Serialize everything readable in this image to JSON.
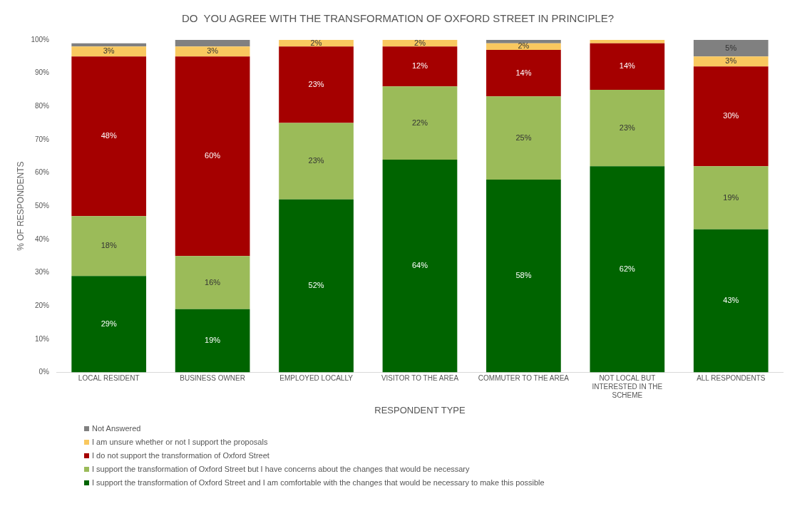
{
  "chart_data": {
    "type": "bar",
    "stacked": true,
    "title": "DO  YOU AGREE WITH THE TRANSFORMATION OF OXFORD STREET IN PRINCIPLE?",
    "xlabel": "RESPONDENT TYPE",
    "ylabel": "% OF RESPONDENTS",
    "categories": [
      "LOCAL RESIDENT",
      "BUSINESS OWNER",
      "EMPLOYED LOCALLY",
      "VISITOR TO THE AREA",
      "COMMUTER TO THE AREA",
      "NOT LOCAL BUT INTERESTED IN THE SCHEME",
      "ALL RESPONDENTS"
    ],
    "ylim": [
      0,
      100
    ],
    "yticks": [
      {
        "value": 0,
        "label": "0%"
      },
      {
        "value": 10,
        "label": "10%"
      },
      {
        "value": 20,
        "label": "20%"
      },
      {
        "value": 30,
        "label": "30%"
      },
      {
        "value": 40,
        "label": "40%"
      },
      {
        "value": 50,
        "label": "50%"
      },
      {
        "value": 60,
        "label": "60%"
      },
      {
        "value": 70,
        "label": "70%"
      },
      {
        "value": 80,
        "label": "80%"
      },
      {
        "value": 90,
        "label": "90%"
      },
      {
        "value": 100,
        "label": "100%"
      }
    ],
    "grid": false,
    "legend": "bottom",
    "series": [
      {
        "name": "I support the transformation of Oxford Street and I am comfortable with the changes that would be necessary to make this possible",
        "color": "#006400",
        "values": [
          29,
          19,
          52,
          64,
          58,
          62,
          43
        ],
        "value_labels": [
          "29%",
          "19%",
          "52%",
          "64%",
          "58%",
          "62%",
          "43%"
        ]
      },
      {
        "name": "I support the transformation of Oxford Street but I have concerns about the changes that would be necessary",
        "color": "#9bbb59",
        "values": [
          18,
          16,
          23,
          22,
          25,
          23,
          19
        ],
        "value_labels": [
          "18%",
          "16%",
          "23%",
          "22%",
          "25%",
          "23%",
          "19%"
        ]
      },
      {
        "name": "I do not support the transformation of Oxford Street",
        "color": "#a50000",
        "values": [
          48,
          60,
          23,
          12,
          14,
          14,
          30
        ],
        "value_labels": [
          "48%",
          "60%",
          "23%",
          "12%",
          "14%",
          "14%",
          "30%"
        ]
      },
      {
        "name": "I am unsure whether or not I support the proposals",
        "color": "#f9c85f",
        "values": [
          3,
          3,
          2,
          2,
          2,
          1,
          3
        ],
        "value_labels": [
          "3%",
          "3%",
          "2%",
          "2%",
          "2%",
          null,
          "3%"
        ]
      },
      {
        "name": "Not Answered",
        "color": "#808080",
        "values": [
          1,
          2,
          0,
          0,
          1,
          0,
          5
        ],
        "value_labels": [
          null,
          null,
          null,
          null,
          null,
          null,
          "5%"
        ]
      }
    ]
  }
}
